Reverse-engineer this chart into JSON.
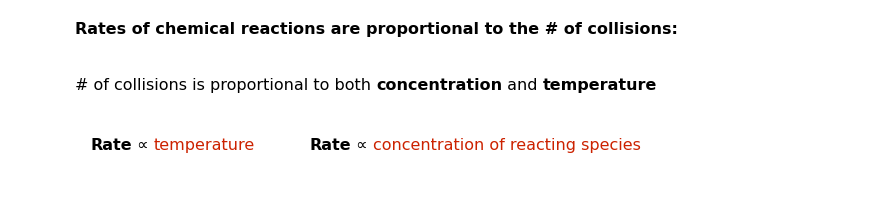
{
  "bg_color": "#ffffff",
  "line1": "Rates of chemical reactions are proportional to the # of collisions:",
  "line2_parts": [
    {
      "text": "# of collisions is proportional to both ",
      "bold": false,
      "color": "#000000"
    },
    {
      "text": "concentration",
      "bold": true,
      "color": "#000000"
    },
    {
      "text": " and ",
      "bold": false,
      "color": "#000000"
    },
    {
      "text": "temperature",
      "bold": true,
      "color": "#000000"
    }
  ],
  "line3_left": [
    {
      "text": "Rate",
      "bold": true,
      "color": "#000000"
    },
    {
      "text": " ∝ ",
      "bold": false,
      "color": "#000000"
    },
    {
      "text": "temperature",
      "bold": false,
      "color": "#cc2200"
    }
  ],
  "line3_right": [
    {
      "text": "Rate",
      "bold": true,
      "color": "#000000"
    },
    {
      "text": " ∝ ",
      "bold": false,
      "color": "#000000"
    },
    {
      "text": "concentration of reacting species",
      "bold": false,
      "color": "#cc2200"
    }
  ],
  "fig_width": 8.74,
  "fig_height": 2.06,
  "dpi": 100
}
